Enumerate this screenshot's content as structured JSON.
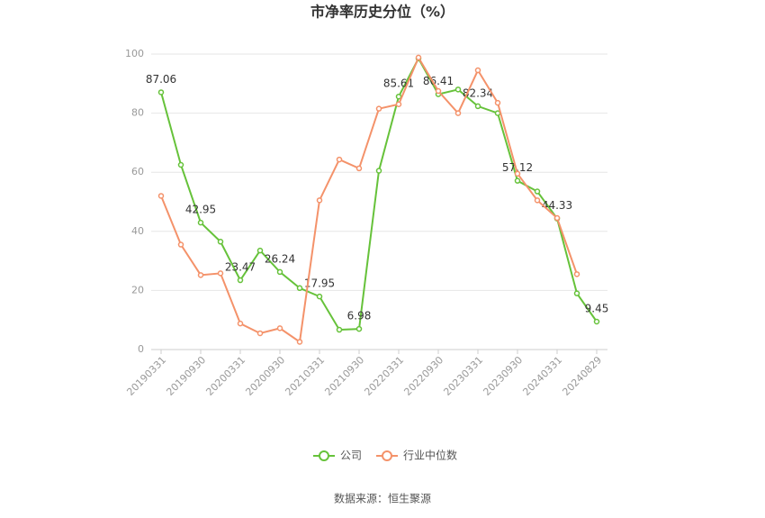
{
  "chart_data": {
    "type": "line",
    "title": "市净率历史分位（%）",
    "categories": [
      "20190331",
      null,
      "20190930",
      null,
      "20200331",
      null,
      "20200930",
      null,
      "20210331",
      null,
      "20210930",
      null,
      "20220331",
      null,
      "20220930",
      null,
      "20230331",
      null,
      "20230930",
      null,
      "20240331",
      null,
      "20240829"
    ],
    "series": [
      {
        "name": "公司",
        "color": "#66c23a",
        "values": [
          87.06,
          62.5,
          42.95,
          36.5,
          23.47,
          33.5,
          26.24,
          20.8,
          17.95,
          6.7,
          6.98,
          60.5,
          85.61,
          98.5,
          86.41,
          88,
          82.34,
          80,
          57.12,
          53.5,
          44.33,
          19,
          9.45
        ],
        "value_labels": [
          "87.06",
          null,
          "42.95",
          null,
          "23.47",
          null,
          "26.24",
          null,
          "17.95",
          null,
          "6.98",
          null,
          "85.61",
          null,
          "86.41",
          null,
          "82.34",
          null,
          "57.12",
          null,
          "44.33",
          null,
          "9.45"
        ]
      },
      {
        "name": "行业中位数",
        "color": "#f4926a",
        "values": [
          52,
          35.5,
          25.2,
          25.8,
          8.8,
          5.5,
          7.2,
          2.6,
          50.5,
          64.3,
          61.3,
          81.5,
          83,
          98.8,
          87.5,
          80,
          94.5,
          83.5,
          59.5,
          50.5,
          44.5,
          25.5,
          null
        ]
      }
    ],
    "ylim": [
      0,
      100
    ],
    "yticks": [
      0,
      20,
      40,
      60,
      80,
      100
    ],
    "grid": true,
    "legend": "bottom",
    "source": "数据来源：恒生聚源"
  }
}
